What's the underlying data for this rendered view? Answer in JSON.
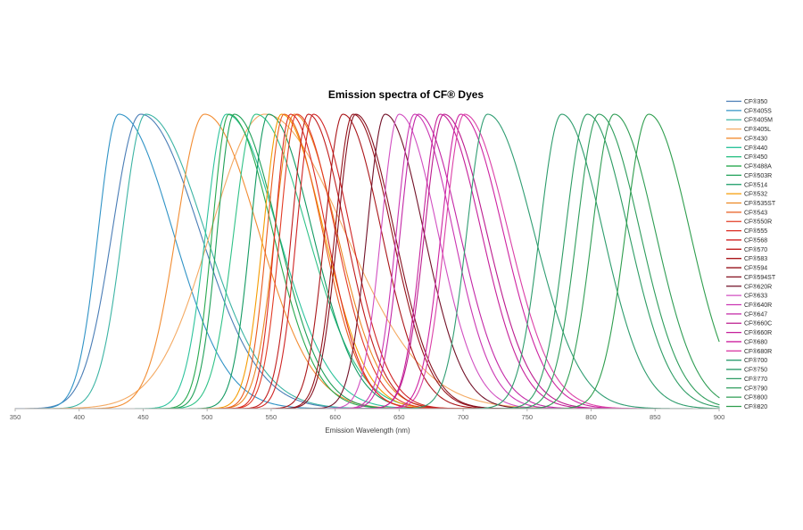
{
  "chart_data": {
    "type": "line",
    "title": "Emission spectra of CF® Dyes",
    "xlabel": "Emission Wavelength (nm)",
    "ylabel": "",
    "xlim": [
      350,
      900
    ],
    "ylim": [
      0,
      1.05
    ],
    "x_ticks": [
      350,
      400,
      450,
      500,
      550,
      600,
      650,
      700,
      750,
      800,
      850,
      900
    ],
    "grid": false,
    "legend_position": "right",
    "curve_model": "asymmetric gaussian: value = exp(-0.5*((x-peak)/sigma)^2), sigma_left below peak, sigma_right above peak, all normalized to relative intensity 1.0",
    "series": [
      {
        "name": "CF®350",
        "color": "#4a7db6",
        "emission_peak_nm": 448,
        "sigma_left_nm": 22,
        "sigma_right_nm": 46,
        "amplitude": 1.0
      },
      {
        "name": "CF®405S",
        "color": "#3093c6",
        "emission_peak_nm": 431,
        "sigma_left_nm": 16,
        "sigma_right_nm": 42,
        "amplitude": 1.0
      },
      {
        "name": "CF®405M",
        "color": "#3cb4a4",
        "emission_peak_nm": 452,
        "sigma_left_nm": 18,
        "sigma_right_nm": 46,
        "amplitude": 1.0
      },
      {
        "name": "CF®405L",
        "color": "#f4aa63",
        "emission_peak_nm": 545,
        "sigma_left_nm": 42,
        "sigma_right_nm": 62,
        "amplitude": 1.0
      },
      {
        "name": "CF®430",
        "color": "#f28d33",
        "emission_peak_nm": 498,
        "sigma_left_nm": 22,
        "sigma_right_nm": 42,
        "amplitude": 1.0
      },
      {
        "name": "CF®440",
        "color": "#2dc39c",
        "emission_peak_nm": 515,
        "sigma_left_nm": 16,
        "sigma_right_nm": 40,
        "amplitude": 1.0
      },
      {
        "name": "CF®450",
        "color": "#2fc287",
        "emission_peak_nm": 538,
        "sigma_left_nm": 17,
        "sigma_right_nm": 40,
        "amplitude": 1.0
      },
      {
        "name": "CF®488A",
        "color": "#28a94f",
        "emission_peak_nm": 517,
        "sigma_left_nm": 13,
        "sigma_right_nm": 34,
        "amplitude": 1.0
      },
      {
        "name": "CF®503R",
        "color": "#1fa058",
        "emission_peak_nm": 521,
        "sigma_left_nm": 13,
        "sigma_right_nm": 34,
        "amplitude": 1.0
      },
      {
        "name": "CF®514",
        "color": "#139a62",
        "emission_peak_nm": 548,
        "sigma_left_nm": 14,
        "sigma_right_nm": 34,
        "amplitude": 1.0
      },
      {
        "name": "CF®532",
        "color": "#f59c04",
        "emission_peak_nm": 558,
        "sigma_left_nm": 14,
        "sigma_right_nm": 33,
        "amplitude": 1.0
      },
      {
        "name": "CF®535ST",
        "color": "#ec8723",
        "emission_peak_nm": 568,
        "sigma_left_nm": 15,
        "sigma_right_nm": 33,
        "amplitude": 1.0
      },
      {
        "name": "CF®543",
        "color": "#e95c1e",
        "emission_peak_nm": 560,
        "sigma_left_nm": 13,
        "sigma_right_nm": 30,
        "amplitude": 1.0
      },
      {
        "name": "CF®550R",
        "color": "#e23b25",
        "emission_peak_nm": 570,
        "sigma_left_nm": 13,
        "sigma_right_nm": 30,
        "amplitude": 1.0
      },
      {
        "name": "CF®555",
        "color": "#db2a20",
        "emission_peak_nm": 565,
        "sigma_left_nm": 12,
        "sigma_right_nm": 28,
        "amplitude": 1.0
      },
      {
        "name": "CF®568",
        "color": "#d02424",
        "emission_peak_nm": 583,
        "sigma_left_nm": 13,
        "sigma_right_nm": 29,
        "amplitude": 1.0
      },
      {
        "name": "CF®570",
        "color": "#c11d1d",
        "emission_peak_nm": 579,
        "sigma_left_nm": 13,
        "sigma_right_nm": 29,
        "amplitude": 1.0
      },
      {
        "name": "CF®583",
        "color": "#aa161a",
        "emission_peak_nm": 606,
        "sigma_left_nm": 14,
        "sigma_right_nm": 30,
        "amplitude": 1.0
      },
      {
        "name": "CF®594",
        "color": "#96121a",
        "emission_peak_nm": 614,
        "sigma_left_nm": 14,
        "sigma_right_nm": 30,
        "amplitude": 1.0
      },
      {
        "name": "CF®594ST",
        "color": "#85101f",
        "emission_peak_nm": 616,
        "sigma_left_nm": 14,
        "sigma_right_nm": 30,
        "amplitude": 1.0
      },
      {
        "name": "CF®620R",
        "color": "#711027",
        "emission_peak_nm": 639,
        "sigma_left_nm": 14,
        "sigma_right_nm": 30,
        "amplitude": 1.0
      },
      {
        "name": "CF®633",
        "color": "#d14fc1",
        "emission_peak_nm": 650,
        "sigma_left_nm": 14,
        "sigma_right_nm": 30,
        "amplitude": 1.0
      },
      {
        "name": "CF®640R",
        "color": "#ca35b2",
        "emission_peak_nm": 662,
        "sigma_left_nm": 14,
        "sigma_right_nm": 30,
        "amplitude": 1.0
      },
      {
        "name": "CF®647",
        "color": "#c327a6",
        "emission_peak_nm": 665,
        "sigma_left_nm": 14,
        "sigma_right_nm": 32,
        "amplitude": 1.0
      },
      {
        "name": "CF®660C",
        "color": "#bb1b8e",
        "emission_peak_nm": 685,
        "sigma_left_nm": 15,
        "sigma_right_nm": 33,
        "amplitude": 1.0
      },
      {
        "name": "CF®660R",
        "color": "#c61f9a",
        "emission_peak_nm": 682,
        "sigma_left_nm": 14,
        "sigma_right_nm": 32,
        "amplitude": 1.0
      },
      {
        "name": "CF®680",
        "color": "#cd22a1",
        "emission_peak_nm": 698,
        "sigma_left_nm": 15,
        "sigma_right_nm": 33,
        "amplitude": 1.0
      },
      {
        "name": "CF®680R",
        "color": "#db40a7",
        "emission_peak_nm": 701,
        "sigma_left_nm": 15,
        "sigma_right_nm": 34,
        "amplitude": 1.0
      },
      {
        "name": "CF®700",
        "color": "#2f9d72",
        "emission_peak_nm": 719,
        "sigma_left_nm": 16,
        "sigma_right_nm": 36,
        "amplitude": 1.0
      },
      {
        "name": "CF®750",
        "color": "#2d9c6c",
        "emission_peak_nm": 777,
        "sigma_left_nm": 17,
        "sigma_right_nm": 32,
        "amplitude": 1.0
      },
      {
        "name": "CF®770",
        "color": "#2d9c64",
        "emission_peak_nm": 797,
        "sigma_left_nm": 17,
        "sigma_right_nm": 32,
        "amplitude": 1.0
      },
      {
        "name": "CF®790",
        "color": "#2e9d5c",
        "emission_peak_nm": 806,
        "sigma_left_nm": 17,
        "sigma_right_nm": 32,
        "amplitude": 1.0
      },
      {
        "name": "CF®800",
        "color": "#2f9d54",
        "emission_peak_nm": 818,
        "sigma_left_nm": 17,
        "sigma_right_nm": 32,
        "amplitude": 1.0
      },
      {
        "name": "CF®820",
        "color": "#2f9e4e",
        "emission_peak_nm": 845,
        "sigma_left_nm": 18,
        "sigma_right_nm": 32,
        "amplitude": 1.0
      }
    ]
  }
}
